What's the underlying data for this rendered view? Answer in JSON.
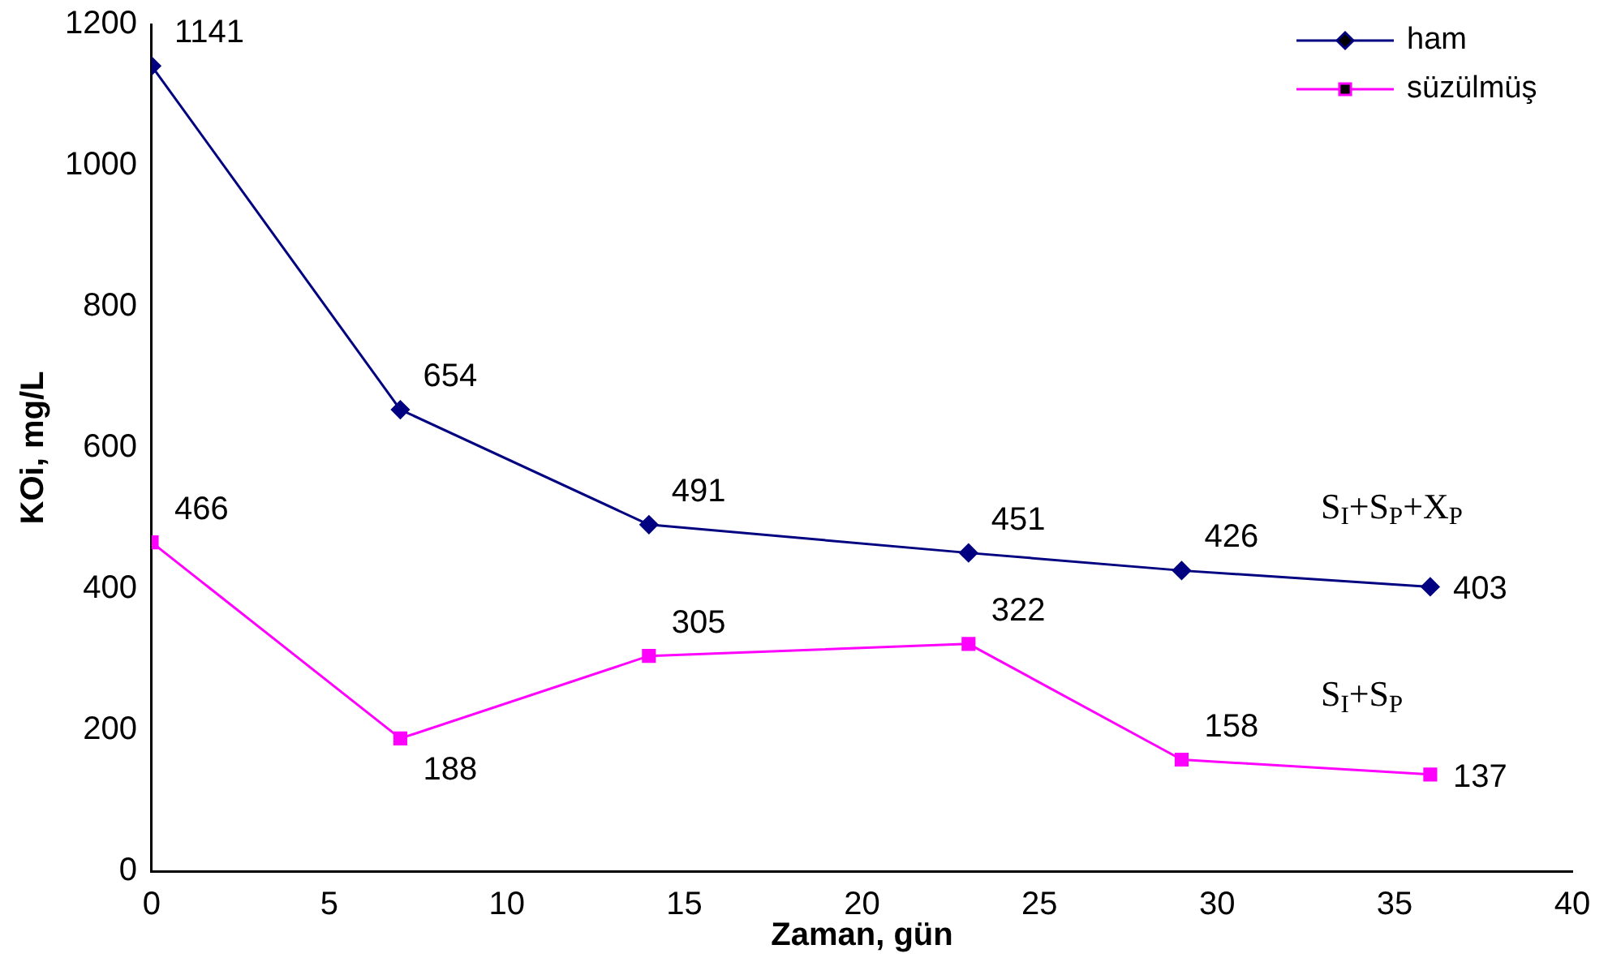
{
  "chart_data": {
    "type": "line",
    "xlabel": "Zaman, gün",
    "ylabel": "KOi, mg/L",
    "x": [
      0,
      7,
      14,
      23,
      29,
      36
    ],
    "series": [
      {
        "name": "ham",
        "color": "#000080",
        "marker": "diamond",
        "values": [
          1141,
          654,
          491,
          451,
          426,
          403
        ]
      },
      {
        "name": "süzülmüş",
        "color": "#ff00ff",
        "marker": "square",
        "values": [
          466,
          188,
          305,
          322,
          158,
          137
        ]
      }
    ],
    "xlim": [
      0,
      40
    ],
    "xticks": [
      0,
      5,
      10,
      15,
      20,
      25,
      30,
      35,
      40
    ],
    "ylim": [
      0,
      1200
    ],
    "yticks": [
      0,
      200,
      400,
      600,
      800,
      1000,
      1200
    ],
    "grid": false,
    "legend": "top right",
    "data_labels": true,
    "line_style": "solid",
    "annotations": [
      "S$_{I}$+S$_{P}$+X$_{P}$",
      "S$_{I}$+S$_{P}$"
    ]
  }
}
